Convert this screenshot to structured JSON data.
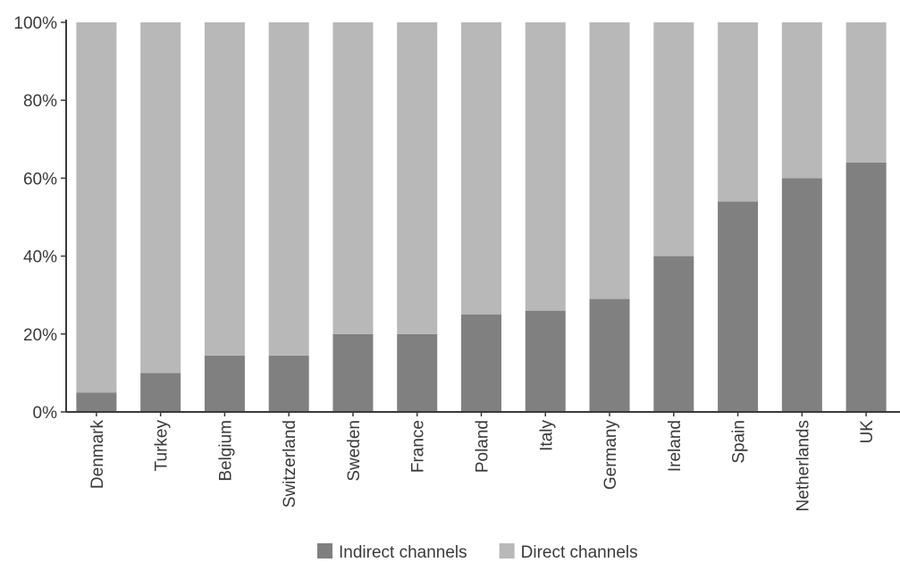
{
  "chart_data": {
    "type": "bar",
    "stacked": true,
    "categories": [
      "Denmark",
      "Turkey",
      "Belgium",
      "Switzerland",
      "Sweden",
      "France",
      "Poland",
      "Italy",
      "Germany",
      "Ireland",
      "Spain",
      "Netherlands",
      "UK"
    ],
    "series": [
      {
        "name": "Indirect channels",
        "color": "#808080",
        "values": [
          5,
          10,
          14.5,
          14.5,
          20,
          20,
          25,
          26,
          29,
          40,
          54,
          60,
          64
        ]
      },
      {
        "name": "Direct channels",
        "color": "#b8b8b8",
        "values": [
          95,
          90,
          85.5,
          85.5,
          80,
          80,
          75,
          74,
          71,
          60,
          46,
          40,
          36
        ]
      }
    ],
    "yticks": [
      "0%",
      "20%",
      "40%",
      "60%",
      "80%",
      "100%"
    ],
    "ylim": [
      0,
      100
    ],
    "grid": false,
    "legend_position": "bottom-center",
    "title": "",
    "xlabel": "",
    "ylabel": ""
  }
}
